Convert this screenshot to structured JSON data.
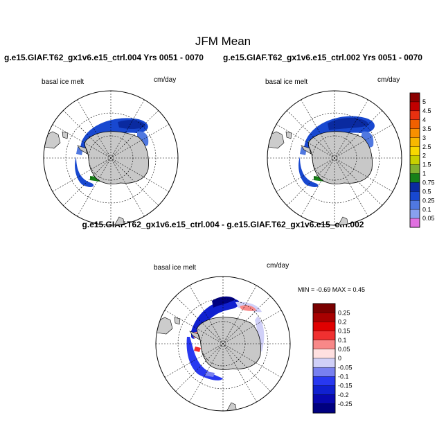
{
  "title": "JFM Mean",
  "panels": [
    {
      "title": "g.e15.GIAF.T62_gx1v6.e15_ctrl.004  Yrs 0051 - 0070",
      "variable": "basal ice melt",
      "units": "cm/day"
    },
    {
      "title": "g.e15.GIAF.T62_gx1v6.e15_ctrl.002  Yrs 0051 - 0070",
      "variable": "basal ice melt",
      "units": "cm/day"
    }
  ],
  "difference": {
    "title": "g.e15.GIAF.T62_gx1v6.e15_ctrl.004 - g.e15.GIAF.T62_gx1v6.e15_ctrl.002",
    "variable": "basal ice melt",
    "units": "cm/day",
    "minmax": "MIN =  -0.69 MAX =   0.45"
  },
  "colorbar_top": {
    "labels": [
      "5",
      "4.5",
      "4",
      "3.5",
      "3",
      "2.5",
      "2",
      "1.5",
      "1",
      "0.75",
      "0.5",
      "0.25",
      "0.1",
      "0.05"
    ],
    "colors": [
      "#8b0000",
      "#c00000",
      "#e83010",
      "#f06000",
      "#f89000",
      "#f8b800",
      "#f8d800",
      "#c8d000",
      "#80b030",
      "#188018",
      "#0a2aa0",
      "#1848d0",
      "#5078e0",
      "#88a0f0",
      "#e070e0"
    ]
  },
  "colorbar_diff": {
    "labels": [
      "0.25",
      "0.2",
      "0.15",
      "0.1",
      "0.05",
      "0",
      "-0.05",
      "-0.1",
      "-0.15",
      "-0.2",
      "-0.25"
    ],
    "colors": [
      "#7a0000",
      "#a80000",
      "#e00000",
      "#f03030",
      "#f88888",
      "#ffe0e0",
      "#d0d0f8",
      "#7880f0",
      "#2838f0",
      "#1020d0",
      "#0808b0",
      "#000080"
    ]
  }
}
